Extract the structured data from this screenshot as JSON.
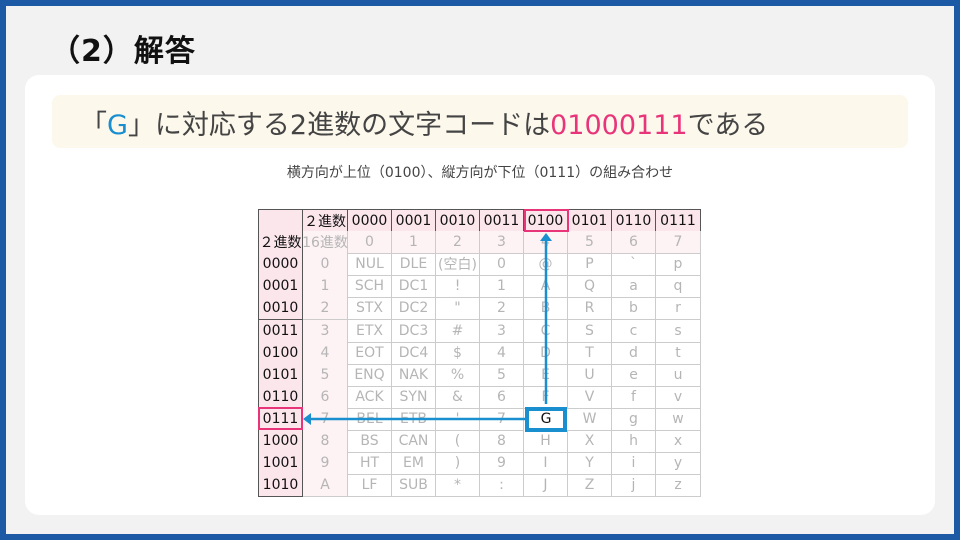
{
  "title": "（2）解答",
  "banner": {
    "prefix": "「",
    "letter": "G",
    "middle": "」に対応する2進数の文字コードは",
    "code": "01000111",
    "suffix": "である"
  },
  "subtitle": "横方向が上位（0100）、縦方向が下位（0111）の組み合わせ",
  "colors": {
    "accent_blue": "#1a8fd0",
    "accent_pink": "#e8357a",
    "border": "#1c5aa6"
  },
  "table": {
    "header": [
      "",
      "２進数",
      "0000",
      "0001",
      "0010",
      "0011",
      "0100",
      "0101",
      "0110",
      "0111"
    ],
    "subheader": [
      "２進数",
      "16進数",
      "0",
      "1",
      "2",
      "3",
      "4",
      "5",
      "6",
      "7"
    ],
    "rows": [
      [
        "0000",
        "0",
        "NUL",
        "DLE",
        "(空白)",
        "0",
        "@",
        "P",
        "`",
        "p"
      ],
      [
        "0001",
        "1",
        "SCH",
        "DC1",
        "!",
        "1",
        "A",
        "Q",
        "a",
        "q"
      ],
      [
        "0010",
        "2",
        "STX",
        "DC2",
        "\"",
        "2",
        "B",
        "R",
        "b",
        "r"
      ],
      [
        "0011",
        "3",
        "ETX",
        "DC3",
        "#",
        "3",
        "C",
        "S",
        "c",
        "s"
      ],
      [
        "0100",
        "4",
        "EOT",
        "DC4",
        "$",
        "4",
        "D",
        "T",
        "d",
        "t"
      ],
      [
        "0101",
        "5",
        "ENQ",
        "NAK",
        "%",
        "5",
        "E",
        "U",
        "e",
        "u"
      ],
      [
        "0110",
        "6",
        "ACK",
        "SYN",
        "&",
        "6",
        "F",
        "V",
        "f",
        "v"
      ],
      [
        "0111",
        "7",
        "BEL",
        "ETB",
        "'",
        "7",
        "G",
        "W",
        "g",
        "w"
      ],
      [
        "1000",
        "8",
        "BS",
        "CAN",
        "(",
        "8",
        "H",
        "X",
        "h",
        "x"
      ],
      [
        "1001",
        "9",
        "HT",
        "EM",
        ")",
        "9",
        "I",
        "Y",
        "i",
        "y"
      ],
      [
        "1010",
        "A",
        "LF",
        "SUB",
        "*",
        ":",
        "J",
        "Z",
        "j",
        "z"
      ]
    ],
    "highlight": {
      "upper": "0100",
      "lower": "0111",
      "char": "G"
    }
  }
}
